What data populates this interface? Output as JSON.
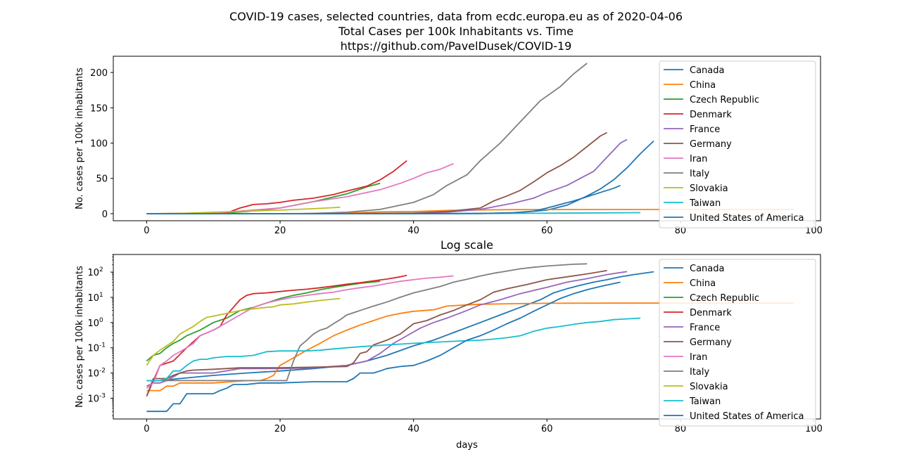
{
  "figure": {
    "title_lines": [
      "COVID-19 cases, selected countries, data from ecdc.europa.eu as of 2020-04-06",
      "Total Cases per 100k Inhabitants vs. Time",
      "https://github.com/PavelDusek/COVID-19"
    ]
  },
  "colors": {
    "Canada": "#1f77b4",
    "China": "#ff7f0e",
    "Czech Republic": "#2ca02c",
    "Denmark": "#d62728",
    "France": "#9467bd",
    "Germany": "#8c564b",
    "Iran": "#e377c2",
    "Italy": "#7f7f7f",
    "Slovakia": "#bcbd22",
    "Taiwan": "#17becf",
    "United States of America": "#1f77b4"
  },
  "chart_data": [
    {
      "type": "line",
      "title": "",
      "xlabel": "",
      "ylabel": "No. cases per 100k inhabitants",
      "xlim": [
        -5,
        101
      ],
      "ylim": [
        -10,
        223
      ],
      "yscale": "linear",
      "xticks": [
        0,
        20,
        40,
        60,
        80,
        100
      ],
      "yticks": [
        0,
        50,
        100,
        150,
        200
      ],
      "legend_position": "top-right",
      "series": [
        {
          "name": "Canada",
          "x": [
            0,
            10,
            20,
            30,
            40,
            50,
            55,
            60,
            63,
            66,
            68,
            70,
            72,
            74,
            76
          ],
          "y": [
            0,
            0,
            0,
            0.02,
            0.05,
            0.3,
            1,
            5,
            12,
            25,
            35,
            48,
            65,
            85,
            103
          ]
        },
        {
          "name": "China",
          "x": [
            0,
            10,
            20,
            25,
            30,
            35,
            40,
            45,
            50,
            55,
            60,
            70,
            80,
            97
          ],
          "y": [
            0,
            0,
            0.02,
            0.2,
            1,
            2.5,
            3,
            4.5,
            5.3,
            5.7,
            5.8,
            5.9,
            5.9,
            5.9
          ]
        },
        {
          "name": "Czech Republic",
          "x": [
            0,
            10,
            15,
            20,
            25,
            30,
            33,
            35
          ],
          "y": [
            0,
            0,
            3,
            8,
            17,
            28,
            38,
            43
          ]
        },
        {
          "name": "Denmark",
          "x": [
            0,
            10,
            12,
            14,
            16,
            18,
            20,
            22,
            25,
            28,
            30,
            33,
            35,
            37,
            39
          ],
          "y": [
            0,
            0.5,
            1,
            8,
            13,
            14,
            16,
            19,
            22,
            27,
            32,
            39,
            48,
            60,
            75
          ]
        },
        {
          "name": "France",
          "x": [
            0,
            20,
            30,
            40,
            45,
            50,
            55,
            58,
            60,
            63,
            65,
            67,
            69,
            71,
            72
          ],
          "y": [
            0,
            0.02,
            0.1,
            0.5,
            2,
            6,
            15,
            22,
            30,
            40,
            50,
            60,
            80,
            100,
            105
          ]
        },
        {
          "name": "Germany",
          "x": [
            0,
            20,
            30,
            40,
            45,
            50,
            52,
            54,
            56,
            58,
            60,
            62,
            64,
            66,
            68,
            69
          ],
          "y": [
            0,
            0.02,
            0.1,
            1,
            3,
            8,
            18,
            25,
            33,
            45,
            58,
            68,
            80,
            95,
            110,
            115
          ]
        },
        {
          "name": "Iran",
          "x": [
            0,
            10,
            20,
            25,
            30,
            35,
            38,
            40,
            42,
            44,
            45,
            46
          ],
          "y": [
            0,
            1,
            8,
            17,
            24,
            34,
            43,
            50,
            58,
            63,
            67,
            71
          ]
        },
        {
          "name": "Italy",
          "x": [
            0,
            20,
            23,
            25,
            30,
            35,
            40,
            43,
            45,
            48,
            50,
            53,
            56,
            59,
            62,
            64,
            66
          ],
          "y": [
            0,
            0.01,
            0.1,
            0.5,
            2,
            6,
            16,
            27,
            40,
            55,
            75,
            100,
            130,
            160,
            180,
            198,
            213
          ]
        },
        {
          "name": "Slovakia",
          "x": [
            0,
            5,
            10,
            15,
            20,
            25,
            29
          ],
          "y": [
            0,
            0.5,
            2,
            3.5,
            5,
            7,
            9
          ]
        },
        {
          "name": "Taiwan",
          "x": [
            0,
            10,
            20,
            30,
            40,
            50,
            60,
            70,
            74
          ],
          "y": [
            0,
            0.03,
            0.07,
            0.1,
            0.18,
            0.25,
            0.7,
            1.3,
            1.5
          ]
        },
        {
          "name": "United States of America",
          "x": [
            0,
            20,
            30,
            40,
            45,
            50,
            55,
            58,
            60,
            62,
            64,
            66,
            68,
            70,
            71
          ],
          "y": [
            0,
            0,
            0.01,
            0.02,
            0.05,
            0.3,
            1.5,
            3.5,
            8,
            13,
            18,
            24,
            30,
            36,
            40
          ]
        }
      ]
    },
    {
      "type": "line",
      "title": "Log scale",
      "xlabel": "days",
      "ylabel": "No. cases per 100k inhabitants",
      "xlim": [
        -5,
        101
      ],
      "ylim": [
        0.00015,
        500
      ],
      "yscale": "log",
      "xticks": [
        0,
        20,
        40,
        60,
        80,
        100
      ],
      "yticks": [
        0.001,
        0.01,
        0.1,
        1,
        10,
        100
      ],
      "ytick_labels": [
        "10",
        "10",
        "10",
        "10",
        "10",
        "10"
      ],
      "ytick_exponents": [
        "-3",
        "-2",
        "-1",
        "0",
        "1",
        "2"
      ],
      "legend_position": "top-right",
      "series": [
        {
          "name": "Canada",
          "x": [
            0,
            1,
            2,
            5,
            10,
            15,
            20,
            25,
            30,
            33,
            36,
            40,
            43,
            46,
            50,
            53,
            56,
            59,
            61,
            63,
            65,
            67,
            69,
            71,
            73,
            76
          ],
          "y": [
            0.005,
            0.005,
            0.005,
            0.006,
            0.008,
            0.01,
            0.012,
            0.015,
            0.02,
            0.03,
            0.05,
            0.12,
            0.2,
            0.4,
            1,
            2,
            4,
            8,
            15,
            22,
            30,
            40,
            50,
            65,
            80,
            103
          ]
        },
        {
          "name": "China",
          "x": [
            0,
            1,
            2,
            3,
            4,
            5,
            10,
            15,
            17,
            18,
            19,
            20,
            22,
            24,
            26,
            28,
            30,
            32,
            34,
            36,
            38,
            40,
            43,
            45,
            48,
            50,
            55,
            60,
            70,
            80,
            97
          ],
          "y": [
            0.002,
            0.002,
            0.002,
            0.003,
            0.003,
            0.004,
            0.004,
            0.005,
            0.005,
            0.006,
            0.008,
            0.02,
            0.04,
            0.08,
            0.15,
            0.3,
            0.5,
            0.8,
            1.2,
            1.8,
            2.3,
            2.8,
            3.2,
            4.5,
            5,
            5.3,
            5.6,
            5.8,
            5.9,
            5.9,
            5.9
          ]
        },
        {
          "name": "Czech Republic",
          "x": [
            0,
            1,
            2,
            3,
            4,
            5,
            6,
            8,
            10,
            12,
            14,
            16,
            18,
            20,
            22,
            24,
            26,
            28,
            30,
            32,
            35
          ],
          "y": [
            0.03,
            0.05,
            0.06,
            0.1,
            0.15,
            0.2,
            0.3,
            0.5,
            1,
            1.5,
            3,
            4,
            6,
            9,
            12,
            15,
            20,
            25,
            30,
            36,
            43
          ]
        },
        {
          "name": "Denmark",
          "x": [
            0,
            1,
            2,
            4,
            6,
            8,
            10,
            11,
            12,
            13,
            14,
            15,
            16,
            18,
            20,
            22,
            24,
            26,
            28,
            30,
            32,
            34,
            36,
            38,
            39
          ],
          "y": [
            0.0012,
            0.005,
            0.02,
            0.03,
            0.1,
            0.3,
            0.5,
            0.7,
            2,
            4,
            8,
            12,
            14,
            15,
            17,
            19,
            21,
            24,
            28,
            33,
            38,
            45,
            53,
            65,
            75
          ]
        },
        {
          "name": "France",
          "x": [
            0,
            1,
            2,
            3,
            4,
            5,
            6,
            7,
            10,
            14,
            20,
            25,
            30,
            33,
            35,
            37,
            39,
            41,
            43,
            45,
            48,
            50,
            53,
            56,
            60,
            63,
            66,
            69,
            72
          ],
          "y": [
            0.003,
            0.004,
            0.004,
            0.005,
            0.007,
            0.01,
            0.01,
            0.01,
            0.01,
            0.015,
            0.015,
            0.016,
            0.02,
            0.03,
            0.06,
            0.15,
            0.3,
            0.6,
            1,
            1.5,
            3,
            5,
            8,
            14,
            25,
            40,
            55,
            80,
            105
          ]
        },
        {
          "name": "Germany",
          "x": [
            0,
            1,
            2,
            3,
            4,
            5,
            6,
            7,
            10,
            14,
            20,
            25,
            30,
            31,
            32,
            33,
            34,
            36,
            38,
            40,
            42,
            44,
            46,
            48,
            50,
            52,
            54,
            57,
            60,
            63,
            66,
            69
          ],
          "y": [
            0.0012,
            0.006,
            0.006,
            0.006,
            0.008,
            0.01,
            0.012,
            0.013,
            0.014,
            0.016,
            0.016,
            0.017,
            0.018,
            0.025,
            0.06,
            0.07,
            0.13,
            0.2,
            0.35,
            0.9,
            1.2,
            2,
            3,
            5,
            8,
            16,
            22,
            32,
            50,
            65,
            85,
            115
          ]
        },
        {
          "name": "Iran",
          "x": [
            0,
            1,
            2,
            3,
            4,
            5,
            6,
            7,
            8,
            10,
            12,
            14,
            16,
            18,
            20,
            22,
            24,
            26,
            28,
            30,
            32,
            34,
            36,
            38,
            40,
            42,
            44,
            46
          ],
          "y": [
            0.0025,
            0.004,
            0.02,
            0.03,
            0.05,
            0.07,
            0.1,
            0.15,
            0.3,
            0.5,
            1,
            2,
            4,
            6,
            8,
            10,
            12,
            14,
            16,
            20,
            24,
            28,
            35,
            43,
            50,
            58,
            63,
            71
          ]
        },
        {
          "name": "Italy",
          "x": [
            0,
            1,
            5,
            10,
            15,
            20,
            21,
            22,
            23,
            24,
            25,
            26,
            27,
            28,
            29,
            30,
            32,
            34,
            36,
            38,
            40,
            42,
            44,
            46,
            48,
            50,
            52,
            54,
            56,
            58,
            60,
            62,
            64,
            66
          ],
          "y": [
            0.005,
            0.005,
            0.005,
            0.005,
            0.005,
            0.005,
            0.005,
            0.03,
            0.12,
            0.2,
            0.35,
            0.5,
            0.6,
            0.9,
            1.3,
            2,
            3,
            4.5,
            6.5,
            10,
            15,
            20,
            27,
            40,
            52,
            70,
            90,
            110,
            135,
            155,
            175,
            190,
            205,
            213
          ]
        },
        {
          "name": "Slovakia",
          "x": [
            0,
            1,
            2,
            3,
            4,
            5,
            6,
            7,
            8,
            9,
            10,
            12,
            14,
            16,
            18,
            19,
            20,
            22,
            24,
            26,
            29
          ],
          "y": [
            0.02,
            0.05,
            0.08,
            0.12,
            0.18,
            0.35,
            0.5,
            0.7,
            1.1,
            1.6,
            1.8,
            2.3,
            3,
            3.5,
            4,
            4.2,
            5,
            5.5,
            6.5,
            7.5,
            9
          ]
        },
        {
          "name": "Taiwan",
          "x": [
            0,
            1,
            2,
            3,
            4,
            5,
            6,
            7,
            8,
            9,
            10,
            12,
            14,
            16,
            18,
            20,
            22,
            24,
            26,
            28,
            30,
            32,
            34,
            36,
            38,
            40,
            42,
            44,
            46,
            48,
            50,
            52,
            54,
            56,
            58,
            60,
            62,
            64,
            66,
            68,
            70,
            72,
            74
          ],
          "y": [
            0.005,
            0.005,
            0.005,
            0.006,
            0.012,
            0.012,
            0.02,
            0.03,
            0.035,
            0.035,
            0.04,
            0.045,
            0.045,
            0.05,
            0.07,
            0.075,
            0.075,
            0.075,
            0.08,
            0.09,
            0.1,
            0.11,
            0.12,
            0.13,
            0.14,
            0.15,
            0.16,
            0.17,
            0.18,
            0.19,
            0.2,
            0.22,
            0.25,
            0.3,
            0.45,
            0.6,
            0.7,
            0.85,
            1,
            1.1,
            1.3,
            1.4,
            1.5
          ]
        },
        {
          "name": "United States of America",
          "x": [
            0,
            1,
            2,
            3,
            4,
            5,
            6,
            7,
            10,
            11,
            12,
            13,
            14,
            15,
            17,
            20,
            25,
            30,
            31,
            32,
            33,
            34,
            35,
            36,
            38,
            40,
            42,
            44,
            46,
            48,
            50,
            52,
            54,
            56,
            58,
            60,
            62,
            64,
            66,
            68,
            70,
            71
          ],
          "y": [
            0.0003,
            0.0003,
            0.0003,
            0.0003,
            0.0006,
            0.0006,
            0.0015,
            0.0015,
            0.0015,
            0.002,
            0.0025,
            0.0035,
            0.0035,
            0.0035,
            0.004,
            0.004,
            0.0045,
            0.0045,
            0.006,
            0.01,
            0.01,
            0.01,
            0.012,
            0.015,
            0.018,
            0.02,
            0.03,
            0.05,
            0.1,
            0.2,
            0.3,
            0.5,
            0.9,
            1.5,
            2.8,
            5,
            9,
            14,
            20,
            27,
            35,
            40
          ]
        }
      ]
    }
  ]
}
